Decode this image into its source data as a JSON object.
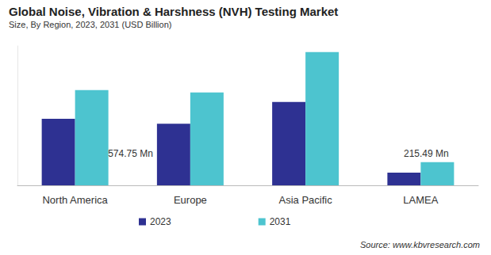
{
  "chart_data": {
    "type": "bar",
    "title": "Global Noise, Vibration & Harshness (NVH) Testing Market",
    "subtitle": "Size, By Region, 2023, 2031 (USD Billion)",
    "categories": [
      "North America",
      "Europe",
      "Asia Pacific",
      "LAMEA"
    ],
    "series": [
      {
        "name": "2023",
        "color": "#2e3192",
        "values": [
          620,
          574.75,
          777,
          118
        ],
        "value_labels": [
          null,
          "574.75 Mn",
          null,
          null
        ]
      },
      {
        "name": "2031",
        "color": "#4dc4cf",
        "values": [
          888,
          866,
          1243,
          215.49
        ],
        "value_labels": [
          null,
          null,
          null,
          "215.49 Mn"
        ]
      }
    ],
    "ylim": [
      0,
      1300
    ],
    "yticks": [],
    "grid": false,
    "legend": "bottom",
    "data_labels": true,
    "tick_labels": "x",
    "annotations": [
      "Source: www.kbvresearch.com"
    ]
  }
}
